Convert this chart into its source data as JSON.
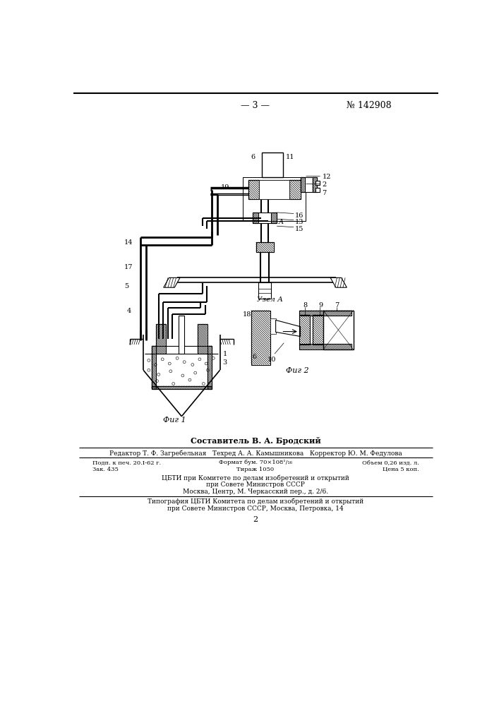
{
  "page_number": "3",
  "patent_number": "№ 142908",
  "author_line": "Составитель В. А. Бродский",
  "editor_line": "Редактор Т. Ф. Загребельная   Техред А. А. Камышникова   Корректор Ю. М. Федулова",
  "print_line1": "Подп. к печ. 20.I-62 г.",
  "format_line1": "Формат бум. 70×108¹/₁₆",
  "volume_line1": "Объем 0,26 изд. л.",
  "order_line2": "Зак. 435",
  "tirage_line2": "Тираж 1050",
  "price_line2": "Цена 5 коп.",
  "org_line1": "ЦБТИ при Комитете по делам изобретений и открытий",
  "org_line2": "при Совете Министров СССР",
  "org_line3": "Москва, Центр, М. Черкасский пер., д. 2/6.",
  "print_org1": "Типография ЦБТИ Комитета по делам изобретений и открытий",
  "print_org2": "при Совете Министров СССР, Москва, Петровка, 14",
  "page_num_bottom": "2",
  "bg_color": "#ffffff",
  "text_color": "#000000"
}
